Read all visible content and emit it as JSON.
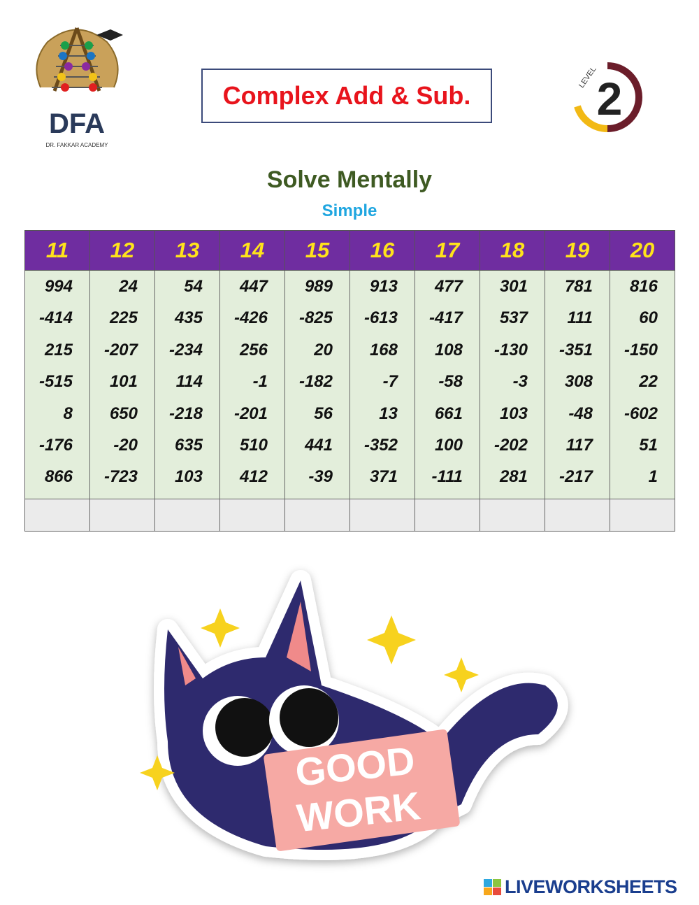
{
  "logo": {
    "text": "DFA",
    "caption": "DR. FAKKAR ACADEMY"
  },
  "title": "Complex Add & Sub.",
  "level_badge": {
    "label": "LEVEL",
    "number": "2"
  },
  "heading": "Solve Mentally",
  "subheading": "Simple",
  "table": {
    "columns": [
      {
        "header": "11",
        "values": [
          "994",
          "-414",
          "215",
          "-515",
          "8",
          "-176",
          "866"
        ]
      },
      {
        "header": "12",
        "values": [
          "24",
          "225",
          "-207",
          "101",
          "650",
          "-20",
          "-723"
        ]
      },
      {
        "header": "13",
        "values": [
          "54",
          "435",
          "-234",
          "114",
          "-218",
          "635",
          "103"
        ]
      },
      {
        "header": "14",
        "values": [
          "447",
          "-426",
          "256",
          "-1",
          "-201",
          "510",
          "412"
        ]
      },
      {
        "header": "15",
        "values": [
          "989",
          "-825",
          "20",
          "-182",
          "56",
          "441",
          "-39"
        ]
      },
      {
        "header": "16",
        "values": [
          "913",
          "-613",
          "168",
          "-7",
          "13",
          "-352",
          "371"
        ]
      },
      {
        "header": "17",
        "values": [
          "477",
          "-417",
          "108",
          "-58",
          "661",
          "100",
          "-111"
        ]
      },
      {
        "header": "18",
        "values": [
          "301",
          "537",
          "-130",
          "-3",
          "103",
          "-202",
          "281"
        ]
      },
      {
        "header": "19",
        "values": [
          "781",
          "111",
          "-351",
          "308",
          "-48",
          "117",
          "-217"
        ]
      },
      {
        "header": "20",
        "values": [
          "816",
          "60",
          "-150",
          "22",
          "-602",
          "51",
          "1"
        ]
      }
    ],
    "answers": [
      "",
      "",
      "",
      "",
      "",
      "",
      "",
      "",
      "",
      ""
    ]
  },
  "sticker": {
    "text_line1": "GOOD",
    "text_line2": "WORK"
  },
  "footer": {
    "brand": "LIVEWORKSHEETS"
  },
  "colors": {
    "header_bg": "#6f2da0",
    "header_text": "#ffe31a",
    "body_bg": "#e3eedb",
    "title_red": "#e8141c",
    "heading_green": "#3e5a22",
    "sub_blue": "#1fa6e0"
  }
}
